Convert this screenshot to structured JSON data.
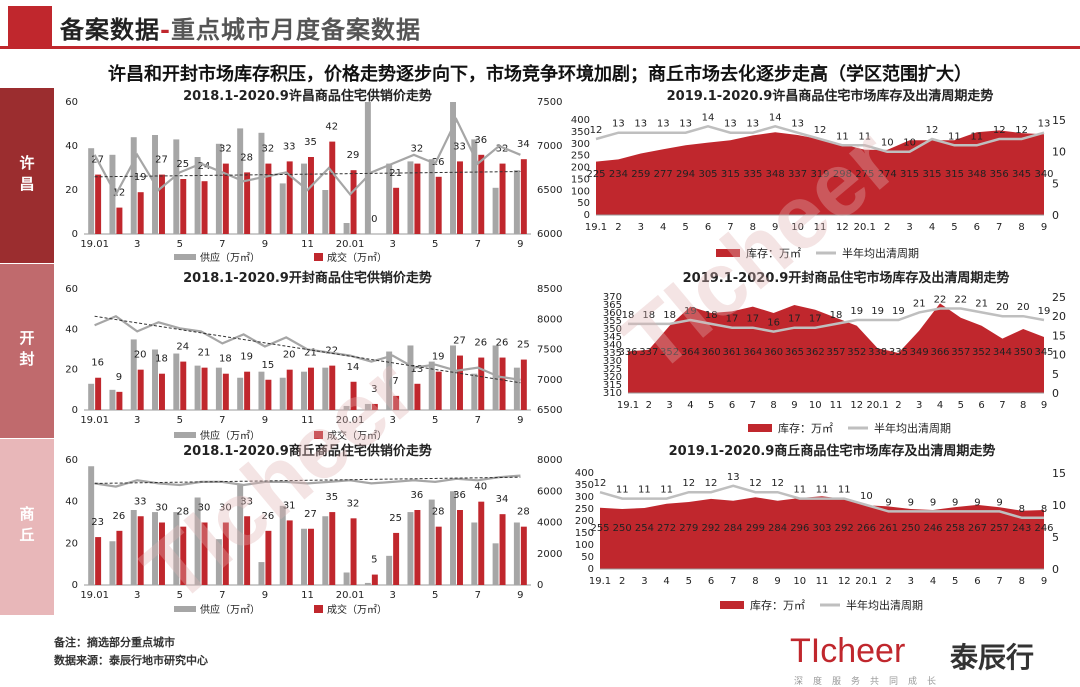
{
  "header": {
    "title_main": "备案数据",
    "sep": "-",
    "title_sub": "重点城市月度备案数据"
  },
  "headline": "许昌和开封市场库存积压，价格走势逐步向下，市场竞争环境加剧；商丘市场去化逐步走高（学区范围扩大）",
  "rows": [
    {
      "label": "许昌",
      "color": "#9b2d2f"
    },
    {
      "label": "开封",
      "color": "#c06a6d"
    },
    {
      "label": "商丘",
      "color": "#e8b7b9"
    }
  ],
  "colors": {
    "supply": "#a6a6a6",
    "deal": "#c0272d",
    "price": "#a6a6a6",
    "inventory": "#c0272d",
    "cycle": "#bfbfbf",
    "accent": "#c0272d"
  },
  "chart_data": [
    {
      "type": "bar",
      "title": "2018.1-2020.9许昌商品住宅供销价走势",
      "x_tick_labels": [
        "19.01",
        "3",
        "5",
        "7",
        "9",
        "11",
        "20.01",
        "3",
        "5",
        "7",
        "9"
      ],
      "legend": [
        "供应（万㎡）",
        "成交（万㎡）"
      ],
      "ylim_left": [
        0,
        60
      ],
      "yticks_left": [
        0,
        20,
        40,
        60
      ],
      "ylim_right": [
        6000,
        7500
      ],
      "yticks_right": [
        6000,
        6500,
        7000,
        7500
      ],
      "supply": [
        39,
        36,
        44,
        45,
        43,
        35,
        41,
        48,
        46,
        23,
        32,
        20,
        5,
        60,
        32,
        33,
        34,
        60,
        43,
        21,
        29
      ],
      "deal": [
        27,
        12,
        19,
        27,
        25,
        24,
        32,
        28,
        32,
        33,
        35,
        42,
        29,
        0,
        21,
        32,
        26,
        33,
        36,
        32,
        34
      ],
      "price": [
        6900,
        6450,
        6900,
        6500,
        6700,
        6800,
        6700,
        6600,
        6650,
        6700,
        6500,
        6750,
        6450,
        6700,
        6800,
        6900,
        6800,
        7300,
        6800,
        7000,
        6900
      ],
      "trend": [
        6650,
        6710
      ]
    },
    {
      "type": "area",
      "title": "2019.1-2020.9许昌商品住宅市场库存及出清周期走势",
      "x_tick_labels": [
        "19.1",
        "2",
        "3",
        "4",
        "5",
        "6",
        "7",
        "8",
        "9",
        "10",
        "11",
        "12",
        "20.1",
        "2",
        "3",
        "4",
        "5",
        "6",
        "7",
        "8",
        "9"
      ],
      "legend": [
        "库存：万㎡",
        "半年均出清周期"
      ],
      "ylim_left": [
        0,
        400
      ],
      "yticks_left": [
        0,
        50,
        100,
        150,
        200,
        250,
        300,
        350,
        400
      ],
      "ylim_right": [
        0,
        15
      ],
      "yticks_right": [
        0,
        5,
        10,
        15
      ],
      "inventory": [
        225,
        234,
        259,
        277,
        294,
        305,
        315,
        335,
        348,
        337,
        319,
        298,
        275,
        274,
        315,
        315,
        315,
        348,
        356,
        345,
        340
      ],
      "cycle": [
        12,
        13,
        13,
        13,
        13,
        14,
        13,
        13,
        14,
        13,
        12,
        11,
        11,
        10,
        10,
        12,
        11,
        11,
        12,
        12,
        13
      ]
    },
    {
      "type": "bar",
      "title": "2018.1-2020.9开封商品住宅供销价走势",
      "x_tick_labels": [
        "19.01",
        "3",
        "5",
        "7",
        "9",
        "11",
        "20.01",
        "3",
        "5",
        "7",
        "9"
      ],
      "legend": [
        "供应（万㎡）",
        "成交（万㎡）"
      ],
      "ylim_left": [
        0,
        60
      ],
      "yticks_left": [
        0,
        20,
        40,
        60
      ],
      "ylim_right": [
        6500,
        8500
      ],
      "yticks_right": [
        6500,
        7000,
        7500,
        8000,
        8500
      ],
      "supply": [
        13,
        10,
        35,
        30,
        28,
        22,
        21,
        16,
        19,
        16,
        19,
        21,
        2,
        3,
        29,
        32,
        24,
        32,
        18,
        32,
        21
      ],
      "deal": [
        16,
        9,
        20,
        18,
        24,
        21,
        18,
        19,
        15,
        20,
        21,
        22,
        14,
        3,
        7,
        13,
        19,
        27,
        26,
        26,
        25
      ],
      "price": [
        7900,
        8050,
        7800,
        7950,
        7850,
        7800,
        7600,
        7750,
        7550,
        7700,
        7500,
        7450,
        7400,
        7300,
        7400,
        7200,
        7250,
        7150,
        7200,
        7050,
        7000
      ],
      "trend": [
        8050,
        6950
      ]
    },
    {
      "type": "area",
      "title": "2019.1-2020.9开封商品住宅市场库存及出清周期走势",
      "x_tick_labels": [
        "19.1",
        "2",
        "3",
        "4",
        "5",
        "6",
        "7",
        "8",
        "9",
        "10",
        "11",
        "12",
        "20.1",
        "2",
        "3",
        "4",
        "5",
        "6",
        "7",
        "8",
        "9"
      ],
      "legend": [
        "库存：万㎡",
        "半年均出清周期"
      ],
      "ylim_left": [
        310,
        370
      ],
      "yticks_left": [
        310,
        315,
        320,
        325,
        330,
        335,
        340,
        345,
        350,
        355,
        360,
        365,
        370
      ],
      "ylim_right": [
        0,
        25
      ],
      "yticks_right": [
        0,
        5,
        10,
        15,
        20,
        25
      ],
      "inventory": [
        336,
        337,
        352,
        364,
        360,
        361,
        364,
        360,
        365,
        362,
        357,
        352,
        338,
        335,
        349,
        366,
        357,
        352,
        344,
        350,
        345
      ],
      "cycle": [
        18,
        18,
        18,
        19,
        18,
        17,
        17,
        16,
        17,
        17,
        18,
        19,
        19,
        19,
        21,
        22,
        22,
        21,
        20,
        20,
        19
      ]
    },
    {
      "type": "bar",
      "title": "2018.1-2020.9商丘商品住宅供销价走势",
      "x_tick_labels": [
        "19.01",
        "3",
        "5",
        "7",
        "9",
        "11",
        "20.01",
        "3",
        "5",
        "7",
        "9"
      ],
      "legend": [
        "供应（万㎡）",
        "成交（万㎡）"
      ],
      "ylim_left": [
        0,
        60
      ],
      "yticks_left": [
        0,
        20,
        40,
        60
      ],
      "ylim_right": [
        0,
        8000
      ],
      "yticks_right": [
        0,
        2000,
        4000,
        6000,
        8000
      ],
      "supply": [
        57,
        21,
        36,
        35,
        35,
        42,
        22,
        48,
        11,
        38,
        27,
        33,
        6,
        1,
        14,
        35,
        41,
        45,
        30,
        20,
        30
      ],
      "deal": [
        23,
        26,
        33,
        30,
        28,
        30,
        30,
        33,
        26,
        31,
        27,
        35,
        32,
        5,
        25,
        36,
        28,
        36,
        40,
        34,
        28
      ],
      "price": [
        6500,
        6300,
        6700,
        6500,
        6400,
        6600,
        6600,
        6400,
        6600,
        6600,
        6500,
        6600,
        6700,
        6500,
        6600,
        6700,
        6600,
        6800,
        6700,
        6900,
        7000
      ],
      "trend": [
        6500,
        6900
      ]
    },
    {
      "type": "area",
      "title": "2019.1-2020.9商丘商品住宅市场库存及出清周期走势",
      "x_tick_labels": [
        "19.1",
        "2",
        "3",
        "4",
        "5",
        "6",
        "7",
        "8",
        "9",
        "10",
        "11",
        "12",
        "20.1",
        "2",
        "3",
        "4",
        "5",
        "6",
        "7",
        "8",
        "9"
      ],
      "legend": [
        "库存：万㎡",
        "半年均出清周期"
      ],
      "ylim_left": [
        0,
        400
      ],
      "yticks_left": [
        0,
        50,
        100,
        150,
        200,
        250,
        300,
        350,
        400
      ],
      "ylim_right": [
        0,
        15
      ],
      "yticks_right": [
        0,
        5,
        10,
        15
      ],
      "inventory": [
        255,
        250,
        254,
        272,
        279,
        292,
        284,
        299,
        284,
        296,
        303,
        292,
        266,
        261,
        250,
        246,
        258,
        267,
        257,
        243,
        246
      ],
      "cycle": [
        12,
        11,
        11,
        11,
        12,
        12,
        13,
        12,
        12,
        11,
        11,
        11,
        10,
        9,
        9,
        9,
        9,
        9,
        9,
        8,
        8
      ]
    }
  ],
  "footnotes": [
    "备注：摘选部分重点城市",
    "数据来源：泰辰行地市研究中心"
  ],
  "logo": {
    "text_en": "TIcheer",
    "text_cn": "泰辰行",
    "slogan": "深度服务共同成长"
  }
}
